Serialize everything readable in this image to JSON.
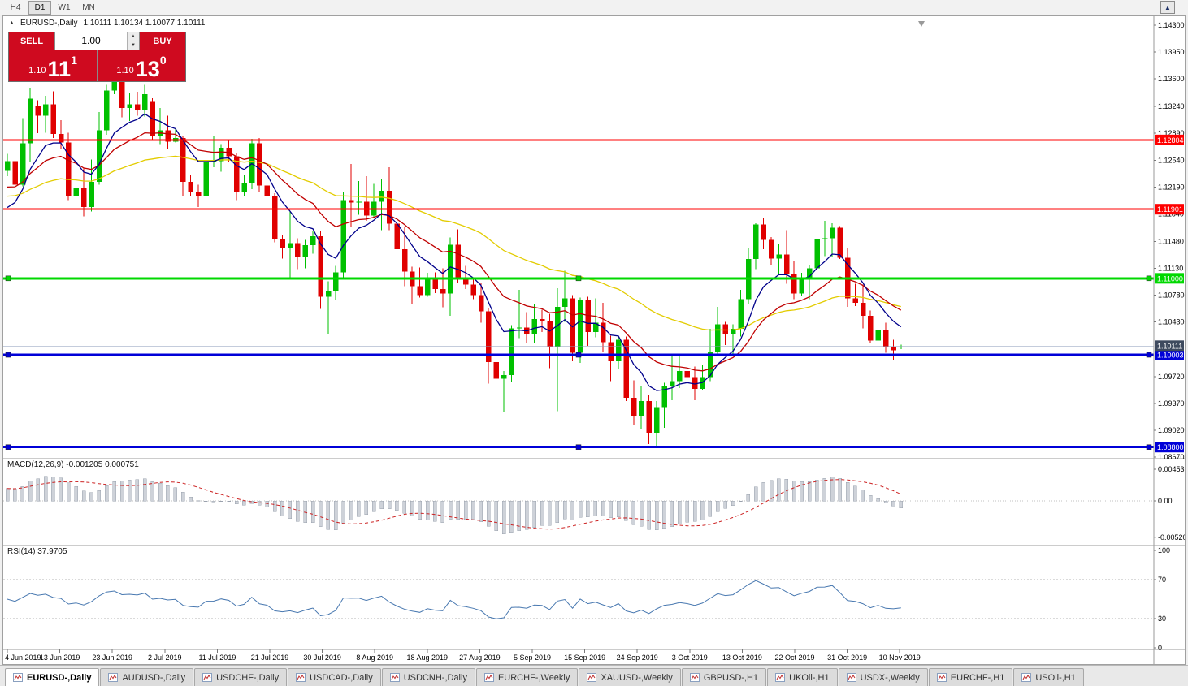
{
  "toolbar": {
    "timeframes": [
      "H4",
      "D1",
      "W1",
      "MN"
    ],
    "active_timeframe": "D1"
  },
  "icons": {
    "collapse_arrow": "▲",
    "spin_up": "▲",
    "spin_down": "▼",
    "toolbar_right": "▲"
  },
  "chart_header": {
    "symbol_title": "EURUSD-,Daily",
    "ohlc": "1.10111 1.10134 1.10077 1.10111"
  },
  "one_click_trading": {
    "sell_label": "SELL",
    "buy_label": "BUY",
    "volume": "1.00",
    "bid": {
      "prefix": "1.10",
      "main": "11",
      "pip": "1"
    },
    "ask": {
      "prefix": "1.10",
      "main": "13",
      "pip": "0"
    }
  },
  "price_axis": {
    "labels": [
      "1.14300",
      "1.13950",
      "1.13600",
      "1.13240",
      "1.12890",
      "1.12540",
      "1.12190",
      "1.11840",
      "1.11480",
      "1.11130",
      "1.10780",
      "1.10430",
      "1.09720",
      "1.09370",
      "1.09020",
      "1.08670"
    ]
  },
  "h_lines": [
    {
      "price": 1.12804,
      "label": "1.12804",
      "color": "#ff0000",
      "width": 2,
      "handles": false
    },
    {
      "price": 1.11901,
      "label": "1.11901",
      "color": "#ff0000",
      "width": 2,
      "handles": false
    },
    {
      "price": 1.11,
      "label": "1.11000",
      "color": "#00d800",
      "width": 3,
      "handles": true
    },
    {
      "price": 1.10003,
      "label": "1.10003",
      "color": "#0000d8",
      "width": 3,
      "handles": true
    },
    {
      "price": 1.088,
      "label": "1.08800",
      "color": "#0000d8",
      "width": 3,
      "handles": true
    }
  ],
  "bid_line": {
    "price": 1.10111,
    "label": "1.10111"
  },
  "indicators": {
    "macd": {
      "label": "MACD(12,26,9) -0.001205 0.000751",
      "axis": [
        {
          "label": "0.004536",
          "value": 0.004536
        },
        {
          "label": "0.00",
          "value": 0
        },
        {
          "label": "-0.005205",
          "value": -0.005205
        }
      ]
    },
    "rsi": {
      "label": "RSI(14) 37.9705",
      "axis": [
        {
          "label": "100",
          "value": 100
        },
        {
          "label": "70",
          "value": 70
        },
        {
          "label": "30",
          "value": 30
        },
        {
          "label": "0",
          "value": 0
        }
      ],
      "levels": [
        70,
        30
      ]
    }
  },
  "date_axis": {
    "labels": [
      "4 Jun 2019",
      "13 Jun 2019",
      "23 Jun 2019",
      "2 Jul 2019",
      "11 Jul 2019",
      "21 Jul 2019",
      "30 Jul 2019",
      "8 Aug 2019",
      "18 Aug 2019",
      "27 Aug 2019",
      "5 Sep 2019",
      "15 Sep 2019",
      "24 Sep 2019",
      "3 Oct 2019",
      "13 Oct 2019",
      "22 Oct 2019",
      "31 Oct 2019",
      "10 Nov 2019"
    ]
  },
  "tabs": {
    "items": [
      "EURUSD-,Daily",
      "AUDUSD-,Daily",
      "USDCHF-,Daily",
      "USDCAD-,Daily",
      "USDCNH-,Daily",
      "EURCHF-,Weekly",
      "XAUUSD-,Weekly",
      "GBPUSD-,H1",
      "UKOil-,H1",
      "USDX-,Weekly",
      "EURCHF-,H1",
      "USOil-,H1"
    ],
    "active": 0
  },
  "colors": {
    "bull": "#00c000",
    "bear": "#e00000",
    "ma_fast": "#00008b",
    "ma_medium": "#c00000",
    "ma_slow": "#e3cc00",
    "bid_line": "#8a99b8",
    "bid_tag": "#3e4a5e",
    "macd_bar": "#ced2d9",
    "macd_bar_border": "#9aa1ad",
    "macd_signal": "#cc2222",
    "rsi": "#4878b0",
    "trade_red": "#cf0a1f"
  },
  "chart_data": {
    "type": "candlestick",
    "title": "EURUSD-,Daily",
    "current_bid": 1.10111,
    "ohlc_current": {
      "open": 1.10111,
      "high": 1.10134,
      "low": 1.10077,
      "close": 1.10111
    },
    "y_axis": {
      "min": 1.0845,
      "max": 1.1442
    },
    "moving_averages": [
      {
        "name": "fast",
        "period": 8,
        "color": "#00008b"
      },
      {
        "name": "medium",
        "period": 18,
        "color": "#c00000"
      },
      {
        "name": "slow",
        "period": 45,
        "color": "#e3cc00"
      }
    ],
    "indicator_panels": [
      {
        "type": "macd",
        "params": "12,26,9",
        "current_main": -0.001205,
        "current_signal": 0.000751,
        "scale_max": 0.004536,
        "scale_min": -0.005205
      },
      {
        "type": "rsi",
        "params": "14",
        "current": 37.9705,
        "levels": [
          70,
          30
        ],
        "scale": [
          0,
          100
        ]
      }
    ],
    "candles": [
      [
        1.124,
        1.1262,
        1.1233,
        1.1253
      ],
      [
        1.1253,
        1.1269,
        1.1216,
        1.1222
      ],
      [
        1.1222,
        1.1309,
        1.122,
        1.1276
      ],
      [
        1.1276,
        1.1348,
        1.1251,
        1.1334
      ],
      [
        1.1325,
        1.1332,
        1.1289,
        1.1312
      ],
      [
        1.1312,
        1.1338,
        1.129,
        1.1327
      ],
      [
        1.1327,
        1.1344,
        1.1283,
        1.1288
      ],
      [
        1.1288,
        1.1306,
        1.1268,
        1.1277
      ],
      [
        1.1277,
        1.129,
        1.1202,
        1.1207
      ],
      [
        1.1207,
        1.124,
        1.1203,
        1.1218
      ],
      [
        1.1218,
        1.1243,
        1.1181,
        1.1193
      ],
      [
        1.1193,
        1.1255,
        1.1187,
        1.1226
      ],
      [
        1.1226,
        1.1317,
        1.1222,
        1.1293
      ],
      [
        1.1293,
        1.1352,
        1.1287,
        1.1345
      ],
      [
        1.1345,
        1.1365,
        1.134,
        1.1358
      ],
      [
        1.1358,
        1.1362,
        1.131,
        1.1322
      ],
      [
        1.1322,
        1.1341,
        1.1305,
        1.1327
      ],
      [
        1.1327,
        1.1343,
        1.1312,
        1.132
      ],
      [
        1.132,
        1.1352,
        1.1311,
        1.134
      ],
      [
        1.133,
        1.1335,
        1.1281,
        1.1285
      ],
      [
        1.1285,
        1.1322,
        1.1275,
        1.1293
      ],
      [
        1.1293,
        1.1312,
        1.1268,
        1.1278
      ],
      [
        1.1278,
        1.1295,
        1.1277,
        1.1283
      ],
      [
        1.1283,
        1.1286,
        1.1207,
        1.1226
      ],
      [
        1.1226,
        1.1234,
        1.1207,
        1.1213
      ],
      [
        1.1213,
        1.1222,
        1.1193,
        1.1208
      ],
      [
        1.1208,
        1.1264,
        1.1202,
        1.1252
      ],
      [
        1.1252,
        1.1285,
        1.1245,
        1.1253
      ],
      [
        1.1253,
        1.1275,
        1.1239,
        1.127
      ],
      [
        1.127,
        1.1281,
        1.1251,
        1.1259
      ],
      [
        1.1259,
        1.1264,
        1.1202,
        1.1212
      ],
      [
        1.1212,
        1.1234,
        1.1207,
        1.1224
      ],
      [
        1.1224,
        1.1282,
        1.1216,
        1.1276
      ],
      [
        1.1276,
        1.1283,
        1.1213,
        1.1221
      ],
      [
        1.1221,
        1.1227,
        1.1198,
        1.1208
      ],
      [
        1.1208,
        1.1211,
        1.1147,
        1.1151
      ],
      [
        1.1151,
        1.1156,
        1.1126,
        1.114
      ],
      [
        1.114,
        1.1187,
        1.1101,
        1.1146
      ],
      [
        1.1146,
        1.1152,
        1.1112,
        1.1128
      ],
      [
        1.1128,
        1.115,
        1.1113,
        1.1143
      ],
      [
        1.1143,
        1.1162,
        1.1132,
        1.1155
      ],
      [
        1.1155,
        1.1162,
        1.106,
        1.1076
      ],
      [
        1.1076,
        1.1096,
        1.1027,
        1.1083
      ],
      [
        1.1083,
        1.1116,
        1.1072,
        1.1108
      ],
      [
        1.1108,
        1.1213,
        1.1101,
        1.1202
      ],
      [
        1.1202,
        1.1249,
        1.1167,
        1.1199
      ],
      [
        1.1199,
        1.1227,
        1.1183,
        1.12
      ],
      [
        1.12,
        1.1233,
        1.1175,
        1.1182
      ],
      [
        1.1182,
        1.1223,
        1.1178,
        1.12
      ],
      [
        1.12,
        1.123,
        1.1163,
        1.1214
      ],
      [
        1.1214,
        1.1245,
        1.1163,
        1.1171
      ],
      [
        1.1171,
        1.1192,
        1.113,
        1.1138
      ],
      [
        1.1138,
        1.1167,
        1.109,
        1.1109
      ],
      [
        1.1109,
        1.1115,
        1.1066,
        1.109
      ],
      [
        1.109,
        1.1114,
        1.1075,
        1.1078
      ],
      [
        1.1078,
        1.1107,
        1.1076,
        1.1099
      ],
      [
        1.1099,
        1.1108,
        1.1081,
        1.1086
      ],
      [
        1.1086,
        1.1113,
        1.1062,
        1.108
      ],
      [
        1.108,
        1.1153,
        1.1051,
        1.1144
      ],
      [
        1.1144,
        1.1164,
        1.1094,
        1.1101
      ],
      [
        1.1101,
        1.1116,
        1.1086,
        1.1092
      ],
      [
        1.1092,
        1.1098,
        1.1073,
        1.1078
      ],
      [
        1.1078,
        1.1094,
        1.1042,
        1.1057
      ],
      [
        1.1057,
        1.1061,
        1.0963,
        1.0991
      ],
      [
        1.0991,
        1.0998,
        1.0958,
        1.0969
      ],
      [
        1.0969,
        1.0979,
        1.0926,
        1.0974
      ],
      [
        1.0974,
        1.1039,
        1.0965,
        1.1035
      ],
      [
        1.1035,
        1.1085,
        1.1022,
        1.1036
      ],
      [
        1.1036,
        1.1056,
        1.1015,
        1.1028
      ],
      [
        1.1028,
        1.1067,
        1.1015,
        1.1047
      ],
      [
        1.1047,
        1.1059,
        1.103,
        1.1044
      ],
      [
        1.1044,
        1.1054,
        1.0983,
        1.1011
      ],
      [
        1.1011,
        1.1087,
        1.0927,
        1.1063
      ],
      [
        1.1063,
        1.111,
        1.1043,
        1.1074
      ],
      [
        1.1074,
        1.1078,
        1.0992,
        1.1003
      ],
      [
        1.1003,
        1.1075,
        1.099,
        1.1072
      ],
      [
        1.1072,
        1.1076,
        1.1012,
        1.103
      ],
      [
        1.103,
        1.1074,
        1.1023,
        1.1042
      ],
      [
        1.1042,
        1.1068,
        1.1004,
        1.1017
      ],
      [
        1.1017,
        1.1025,
        1.0966,
        1.0992
      ],
      [
        1.0992,
        1.1024,
        1.0982,
        1.102
      ],
      [
        1.102,
        1.1024,
        1.094,
        1.0944
      ],
      [
        1.0944,
        1.0967,
        1.0909,
        1.0921
      ],
      [
        1.0921,
        1.0959,
        1.0904,
        1.094
      ],
      [
        1.094,
        1.0948,
        1.0884,
        1.0899
      ],
      [
        1.0899,
        1.094,
        1.0879,
        1.0932
      ],
      [
        1.0932,
        1.0964,
        1.0905,
        1.0959
      ],
      [
        1.0959,
        1.0999,
        1.0941,
        1.0966
      ],
      [
        1.0966,
        1.0999,
        1.0957,
        1.0979
      ],
      [
        1.0979,
        1.0996,
        1.0962,
        1.0971
      ],
      [
        1.0971,
        1.0985,
        1.0941,
        1.0956
      ],
      [
        1.0956,
        1.0987,
        1.0955,
        1.0971
      ],
      [
        1.0971,
        1.1034,
        1.0966,
        1.1004
      ],
      [
        1.1004,
        1.1063,
        1.1002,
        1.104
      ],
      [
        1.104,
        1.1043,
        1.1013,
        1.1028
      ],
      [
        1.1028,
        1.104,
        1.0999,
        1.1034
      ],
      [
        1.1034,
        1.1085,
        1.1024,
        1.1073
      ],
      [
        1.1073,
        1.114,
        1.1066,
        1.1125
      ],
      [
        1.1125,
        1.1172,
        1.1112,
        1.117
      ],
      [
        1.117,
        1.1179,
        1.1138,
        1.115
      ],
      [
        1.115,
        1.1154,
        1.1117,
        1.1126
      ],
      [
        1.1126,
        1.1145,
        1.1105,
        1.1131
      ],
      [
        1.1131,
        1.1163,
        1.1093,
        1.1105
      ],
      [
        1.1105,
        1.1123,
        1.1073,
        1.108
      ],
      [
        1.108,
        1.1107,
        1.1077,
        1.1099
      ],
      [
        1.1099,
        1.1118,
        1.1073,
        1.1113
      ],
      [
        1.1113,
        1.1161,
        1.1081,
        1.1151
      ],
      [
        1.1151,
        1.1175,
        1.1129,
        1.1152
      ],
      [
        1.1152,
        1.1172,
        1.1128,
        1.1166
      ],
      [
        1.1166,
        1.1168,
        1.1125,
        1.1127
      ],
      [
        1.1127,
        1.114,
        1.1063,
        1.1074
      ],
      [
        1.1074,
        1.1093,
        1.1064,
        1.1068
      ],
      [
        1.1068,
        1.1092,
        1.1035,
        1.1051
      ],
      [
        1.1051,
        1.1058,
        1.1016,
        1.1019
      ],
      [
        1.1019,
        1.1043,
        1.1016,
        1.1033
      ],
      [
        1.1033,
        1.1042,
        1.1003,
        1.101
      ],
      [
        1.101,
        1.102,
        1.0994,
        1.1006
      ],
      [
        1.10111,
        1.10134,
        1.10077,
        1.10111
      ]
    ]
  }
}
